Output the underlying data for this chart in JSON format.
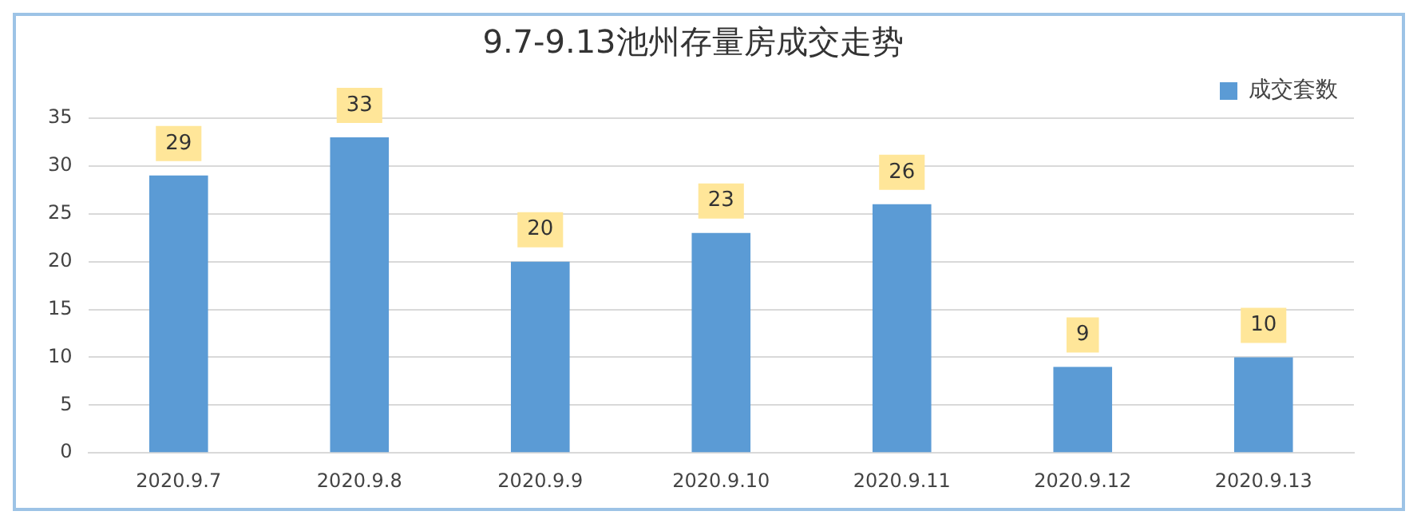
{
  "chart_data": {
    "type": "bar",
    "title": "9.7-9.13池州存量房成交走势",
    "categories": [
      "2020.9.7",
      "2020.9.8",
      "2020.9.9",
      "2020.9.10",
      "2020.9.11",
      "2020.9.12",
      "2020.9.13"
    ],
    "series": [
      {
        "name": "成交套数",
        "color": "#5b9bd5",
        "values": [
          29,
          33,
          20,
          23,
          26,
          9,
          10
        ]
      }
    ],
    "ylim": [
      0,
      35
    ],
    "yticks": [
      0,
      5,
      10,
      15,
      20,
      25,
      30,
      35
    ],
    "grid": "y",
    "legend": "top right",
    "data_labels": true
  }
}
